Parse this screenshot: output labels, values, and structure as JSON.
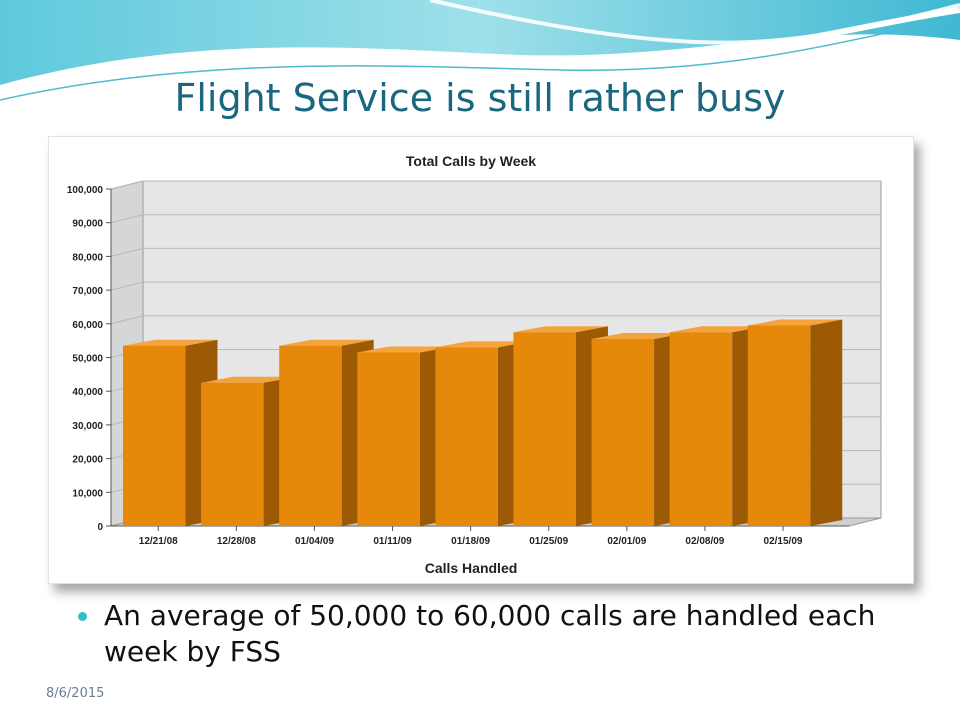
{
  "slide": {
    "title": "Flight Service is still rather busy",
    "bullet": "An average of 50,000 to 60,000 calls are handled each week by FSS",
    "date": "8/6/2015"
  },
  "colors": {
    "title": "#1b6780",
    "bar_front": "#e6890a",
    "bar_side": "#9c5a05",
    "bar_top": "#f5a43d",
    "bullet": "#2ec1c8"
  },
  "chart_data": {
    "type": "bar",
    "title": "Total Calls by Week",
    "xlabel": "Calls Handled",
    "ylabel": "",
    "categories": [
      "12/21/08",
      "12/28/08",
      "01/04/09",
      "01/11/09",
      "01/18/09",
      "01/25/09",
      "02/01/09",
      "02/08/09",
      "02/15/09"
    ],
    "values": [
      53500,
      42500,
      53500,
      51500,
      53000,
      57500,
      55500,
      57500,
      59500
    ],
    "ylim": [
      0,
      100000
    ],
    "yticks": [
      "0",
      "10,000",
      "20,000",
      "30,000",
      "40,000",
      "50,000",
      "60,000",
      "70,000",
      "80,000",
      "90,000",
      "100,000"
    ],
    "grid": true,
    "legend": "none",
    "style": "3d"
  }
}
